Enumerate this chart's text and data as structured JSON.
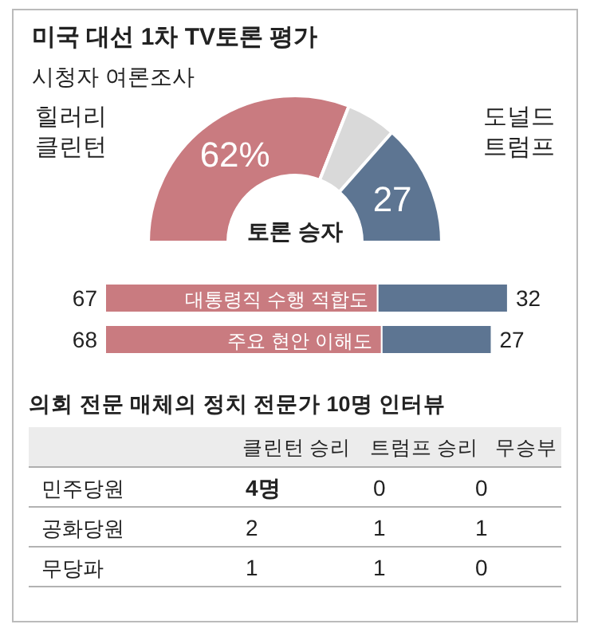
{
  "chart_data": [
    {
      "type": "donut",
      "title": "미국 대선 1차 TV토론 평가",
      "subtitle": "시청자 여론조사",
      "categories": [
        "힐러리 클린턴",
        null,
        "도널드 트럼프"
      ],
      "values": [
        62,
        11,
        27
      ],
      "colors": [
        "#c97b80",
        "#d9d9d9",
        "#5d7592"
      ],
      "value_labels": [
        "62%",
        null,
        "27"
      ],
      "annotations": [
        "토론 승자"
      ]
    },
    {
      "type": "bar",
      "orientation": "horizontal",
      "stacked": true,
      "data_labels": true,
      "categories": [
        "대통령직 수행 적합도",
        "주요 현안 이해도"
      ],
      "series": [
        {
          "color": "#c97b80",
          "values": [
            67,
            68
          ]
        },
        {
          "color": "#5d7592",
          "values": [
            32,
            27
          ]
        }
      ]
    },
    {
      "type": "heatmap",
      "title": "의회 전문 매체의 정치 전문가 10명 인터뷰",
      "categories": [
        "클린턴 승리",
        "트럼프 승리",
        "무승부"
      ],
      "y_categories": [
        "민주당원",
        "공화당원",
        "무당파"
      ],
      "cells": [
        [
          4,
          0,
          0
        ],
        [
          2,
          1,
          1
        ],
        [
          1,
          1,
          0
        ]
      ],
      "cell_labels": [
        [
          "4명",
          "0",
          "0"
        ],
        [
          "2",
          "1",
          "1"
        ],
        [
          "1",
          "1",
          "0"
        ]
      ]
    }
  ]
}
